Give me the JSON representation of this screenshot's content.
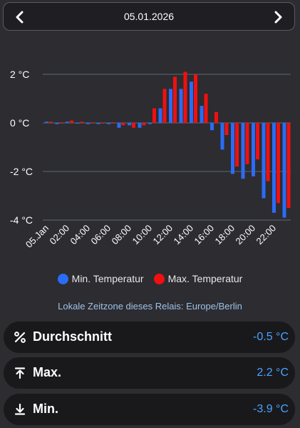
{
  "header": {
    "date": "05.01.2026",
    "prev_icon": "chevron-left-icon",
    "next_icon": "chevron-right-icon"
  },
  "chart_data": {
    "type": "bar",
    "title": "",
    "xlabel": "",
    "ylabel": "",
    "unit": "°C",
    "ylim": [
      -4.3,
      2.5
    ],
    "yticks": [
      {
        "value": 2,
        "label": "2 °C"
      },
      {
        "value": 0,
        "label": "0 °C"
      },
      {
        "value": -2,
        "label": "-2 °C"
      },
      {
        "value": -4,
        "label": "-4 °C"
      }
    ],
    "x_tick_labels": [
      "05.Jan",
      "02:00",
      "04:00",
      "06:00",
      "08:00",
      "10:00",
      "12:00",
      "14:00",
      "16:00",
      "18:00",
      "20:00",
      "22:00"
    ],
    "x_tick_every": 4,
    "interval_minutes": 30,
    "grid": true,
    "legend_position": "bottom",
    "series": [
      {
        "name": "Min. Temperatur",
        "color": "#2a6cf5",
        "values": [
          0.05,
          -0.05,
          0.05,
          0.0,
          -0.05,
          -0.05,
          -0.05,
          -0.2,
          -0.1,
          -0.2,
          -0.05,
          0.6,
          1.4,
          1.4,
          1.7,
          0.7,
          -0.3,
          -1.1,
          -2.1,
          -2.3,
          -2.2,
          -3.1,
          -3.7,
          -3.9
        ]
      },
      {
        "name": "Max. Temperatur",
        "color": "#f01010",
        "values": [
          0.05,
          0.0,
          0.1,
          0.05,
          0.0,
          0.0,
          0.0,
          -0.1,
          -0.2,
          -0.1,
          0.6,
          1.4,
          1.9,
          2.1,
          2.0,
          1.2,
          0.45,
          -0.5,
          -1.8,
          -1.7,
          -1.5,
          -2.4,
          -3.3,
          -3.5
        ]
      }
    ]
  },
  "legend": {
    "min_label": "Min. Temperatur",
    "max_label": "Max. Temperatur"
  },
  "timezone_note": "Lokale Zeitzone dieses Relais: Europe/Berlin",
  "stats": [
    {
      "icon": "percent-icon",
      "label": "Durchschnitt",
      "value": "-0.5 °C"
    },
    {
      "icon": "arrow-up-to-bar-icon",
      "label": "Max.",
      "value": "2.2 °C"
    },
    {
      "icon": "arrow-down-to-bar-icon",
      "label": "Min.",
      "value": "-3.9 °C"
    }
  ],
  "colors": {
    "accent_value": "#4aa3ff",
    "min_series": "#2a6cf5",
    "max_series": "#f01010"
  }
}
